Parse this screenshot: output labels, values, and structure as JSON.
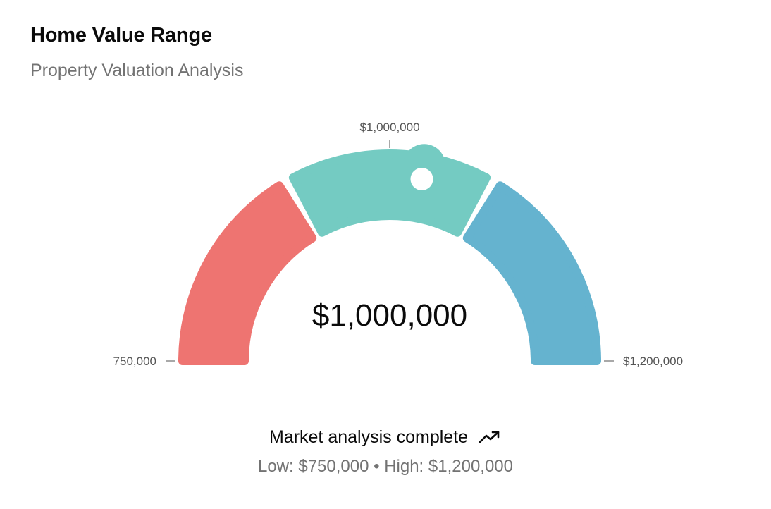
{
  "card": {
    "title": "Home Value Range",
    "subtitle": "Property Valuation Analysis"
  },
  "chart_data": {
    "type": "gauge",
    "value": 1000000,
    "value_label": "$1,000,000",
    "min": 750000,
    "max": 1200000,
    "min_label": "750,000",
    "max_label": "$1,200,000",
    "top_tick_label": "$1,000,000",
    "segments": [
      {
        "from": 750000,
        "to": 900000,
        "color": "#ee7471"
      },
      {
        "from": 900000,
        "to": 1050000,
        "color": "#74cbc2"
      },
      {
        "from": 1050000,
        "to": 1200000,
        "color": "#65b3cf"
      }
    ]
  },
  "footer": {
    "status": "Market analysis complete",
    "status_icon": "trending-up-icon",
    "range_text": "Low: $750,000 • High: $1,200,000"
  }
}
